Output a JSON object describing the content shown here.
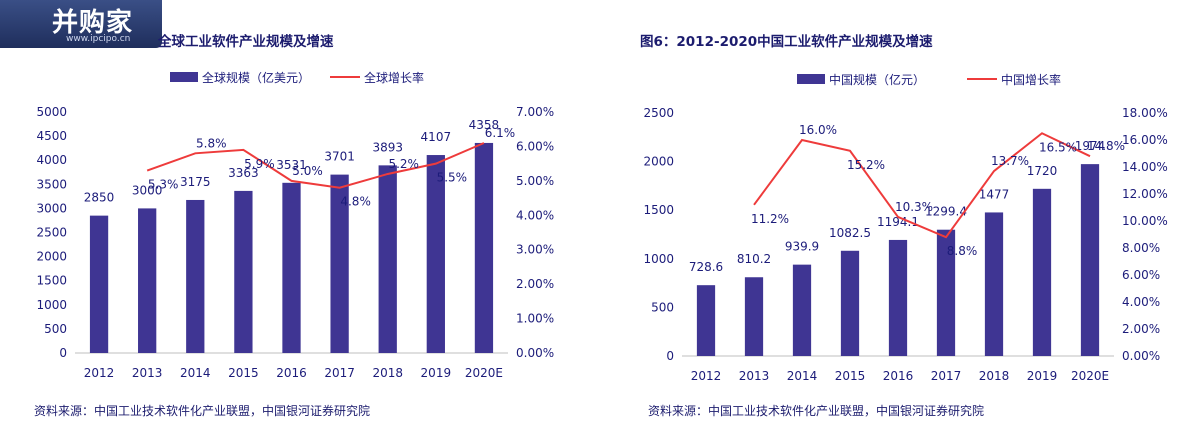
{
  "logo": {
    "text": "并购家",
    "url": "www.ipcipo.cn"
  },
  "charts": [
    {
      "title": "全球工业软件产业规模及增速",
      "source": "资料来源：中国工业技术软件化产业联盟，中国银河证券研究院"
    },
    {
      "title": "图6：2012-2020中国工业软件产业规模及增速",
      "source": "资料来源：中国工业技术软件化产业联盟，中国银河证券研究院"
    }
  ],
  "chart_data": [
    {
      "type": "bar",
      "title": "全球工业软件产业规模及增速",
      "categories": [
        "2012",
        "2013",
        "2014",
        "2015",
        "2016",
        "2017",
        "2018",
        "2019",
        "2020E"
      ],
      "series": [
        {
          "name": "全球规模（亿美元）",
          "type": "bar",
          "axis": "left",
          "values": [
            2850,
            3000,
            3175,
            3363,
            3531,
            3701,
            3893,
            4107,
            4358
          ],
          "labels": [
            "2850",
            "3000",
            "3175",
            "3363",
            "3531",
            "3701",
            "3893",
            "4107",
            "4358"
          ]
        },
        {
          "name": "全球增长率",
          "type": "line",
          "axis": "right",
          "values": [
            null,
            5.3,
            5.8,
            5.9,
            5.0,
            4.8,
            5.2,
            5.5,
            6.1
          ],
          "labels": [
            "",
            "5.3%",
            "5.8%",
            "5.9%",
            "5.0%",
            "4.8%",
            "5.2%",
            "5.5%",
            "6.1%"
          ]
        }
      ],
      "ylim": [
        0,
        5000
      ],
      "yticks": [
        "0",
        "500",
        "1000",
        "1500",
        "2000",
        "2500",
        "3000",
        "3500",
        "4000",
        "4500",
        "5000"
      ],
      "y2lim": [
        0,
        7
      ],
      "y2ticks": [
        "0.00%",
        "1.00%",
        "2.00%",
        "3.00%",
        "4.00%",
        "5.00%",
        "6.00%",
        "7.00%"
      ],
      "legend": "top",
      "colors": {
        "bar": "#3f3593",
        "line": "#ee3b3b"
      }
    },
    {
      "type": "bar",
      "title": "图6：2012-2020中国工业软件产业规模及增速",
      "categories": [
        "2012",
        "2013",
        "2014",
        "2015",
        "2016",
        "2017",
        "2018",
        "2019",
        "2020E"
      ],
      "series": [
        {
          "name": "中国规模（亿元）",
          "type": "bar",
          "axis": "left",
          "values": [
            728.6,
            810.2,
            939.9,
            1082.5,
            1194.1,
            1299.4,
            1477,
            1720,
            1974
          ],
          "labels": [
            "728.6",
            "810.2",
            "939.9",
            "1082.5",
            "1194.1",
            "1299.4",
            "1477",
            "1720",
            "1974"
          ]
        },
        {
          "name": "中国增长率",
          "type": "line",
          "axis": "right",
          "values": [
            null,
            11.2,
            16.0,
            15.2,
            10.3,
            8.8,
            13.7,
            16.5,
            14.8
          ],
          "labels": [
            "",
            "11.2%",
            "16.0%",
            "15.2%",
            "10.3%",
            "8.8%",
            "13.7%",
            "16.5%",
            "14.8%"
          ]
        }
      ],
      "ylim": [
        0,
        2500
      ],
      "yticks": [
        "0",
        "500",
        "1000",
        "1500",
        "2000",
        "2500"
      ],
      "y2lim": [
        0,
        18
      ],
      "y2ticks": [
        "0.00%",
        "2.00%",
        "4.00%",
        "6.00%",
        "8.00%",
        "10.00%",
        "12.00%",
        "14.00%",
        "16.00%",
        "18.00%"
      ],
      "legend": "top",
      "colors": {
        "bar": "#3f3593",
        "line": "#ee3b3b"
      }
    }
  ]
}
